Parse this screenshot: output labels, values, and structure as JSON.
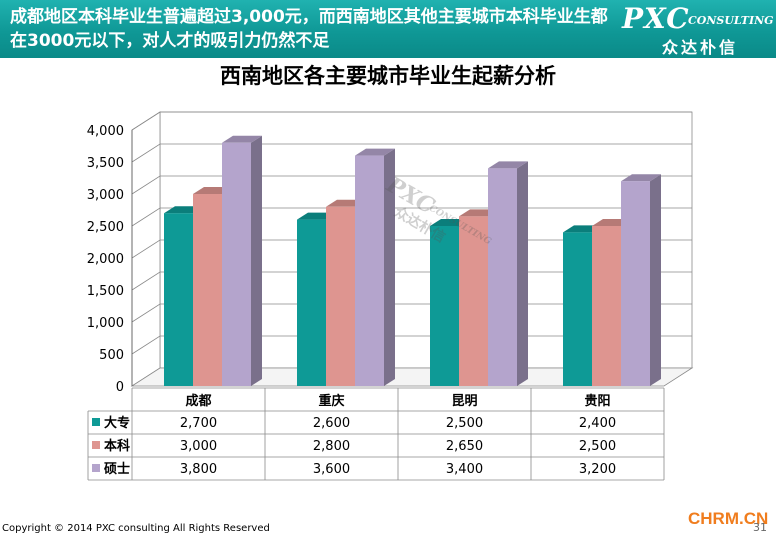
{
  "header": {
    "text": "成都地区本科毕业生普遍超过3,000元，而西南地区其他主要城市本科毕业生都在3000元以下，对人才的吸引力仍然不足"
  },
  "logo": {
    "main": "PXC",
    "sub": "CONSULTING",
    "cn": "众达朴信"
  },
  "watermark": {
    "main": "PXC",
    "sub": "CONSULTING",
    "cn": "众达朴信"
  },
  "footer": {
    "copyright": "Copyright © 2014 PXC consulting All Rights Reserved",
    "site": "CHRM.CN",
    "page": "31"
  },
  "colors": {
    "header_bg": "#0f9896",
    "dazhuan": "#0e9a96",
    "benke": "#de9590",
    "shuoshi": "#b4a4cc"
  },
  "chart_data": {
    "type": "bar",
    "title": "西南地区各主要城市毕业生起薪分析",
    "categories": [
      "成都",
      "重庆",
      "昆明",
      "贵阳"
    ],
    "series": [
      {
        "name": "大专",
        "values": [
          2700,
          2600,
          2500,
          2400
        ],
        "labels": [
          "2,700",
          "2,600",
          "2,500",
          "2,400"
        ],
        "color": "#0e9a96"
      },
      {
        "name": "本科",
        "values": [
          3000,
          2800,
          2650,
          2500
        ],
        "labels": [
          "3,000",
          "2,800",
          "2,650",
          "2,500"
        ],
        "color": "#de9590"
      },
      {
        "name": "硕士",
        "values": [
          3800,
          3600,
          3400,
          3200
        ],
        "labels": [
          "3,800",
          "3,600",
          "3,400",
          "3,200"
        ],
        "color": "#b4a4cc"
      }
    ],
    "ylim": [
      0,
      4000
    ],
    "yticks": [
      0,
      500,
      1000,
      1500,
      2000,
      2500,
      3000,
      3500,
      4000
    ],
    "ytick_labels": [
      "0",
      "500",
      "1,000",
      "1,500",
      "2,000",
      "2,500",
      "3,000",
      "3,500",
      "4,000"
    ],
    "grid": true,
    "style": "3d",
    "legend": "data-table-below"
  }
}
